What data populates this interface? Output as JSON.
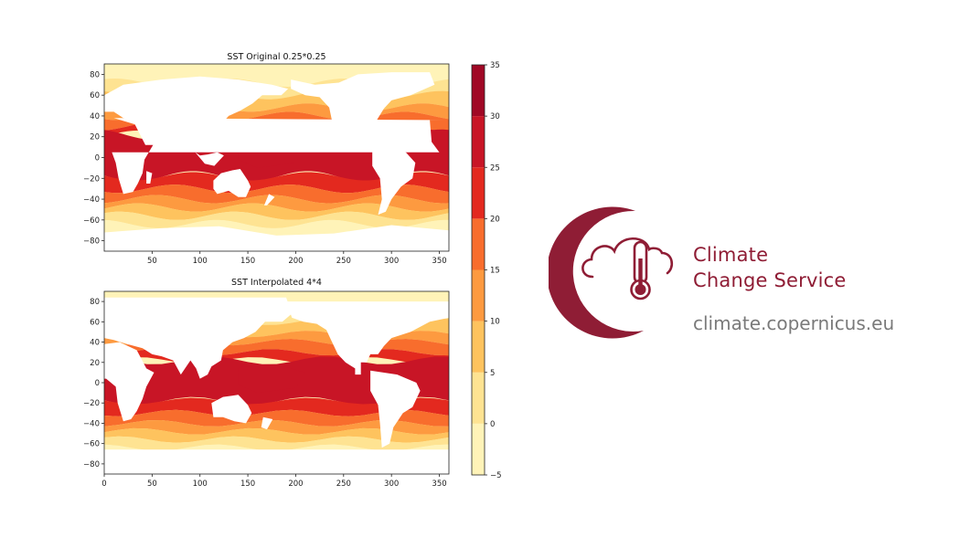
{
  "chart_data": [
    {
      "type": "heatmap",
      "title": "SST Original 0.25*0.25",
      "xlim": [
        0,
        360
      ],
      "ylim": [
        -90,
        90
      ],
      "xticks": [
        50,
        100,
        150,
        200,
        250,
        300,
        350
      ],
      "yticks": [
        80,
        60,
        40,
        20,
        0,
        -20,
        -40,
        -60,
        -80
      ],
      "grid": false
    },
    {
      "type": "heatmap",
      "title": "SST Interpolated 4*4",
      "xlim": [
        0,
        360
      ],
      "ylim": [
        -90,
        90
      ],
      "xticks": [
        0,
        50,
        100,
        150,
        200,
        250,
        300,
        350
      ],
      "yticks": [
        80,
        60,
        40,
        20,
        0,
        -20,
        -40,
        -60,
        -80
      ],
      "grid": false
    }
  ],
  "colorbar": {
    "range": [
      -5,
      35
    ],
    "ticks": [
      35,
      30,
      25,
      20,
      15,
      10,
      5,
      0,
      -5
    ],
    "colors": [
      "#fff3b8",
      "#fee392",
      "#fec35e",
      "#fd9a40",
      "#f86d2d",
      "#e3291f",
      "#c81526",
      "#a00825"
    ],
    "tick_labels": [
      "35",
      "30",
      "25",
      "20",
      "15",
      "10",
      "5",
      "0",
      "−5"
    ]
  },
  "logo": {
    "line1": "Climate",
    "line2": "Change Service",
    "url": "climate.copernicus.eu",
    "icon": "cloud-thermometer-icon",
    "brand_color": "#8f1d35",
    "url_color": "#7a7a7a"
  }
}
